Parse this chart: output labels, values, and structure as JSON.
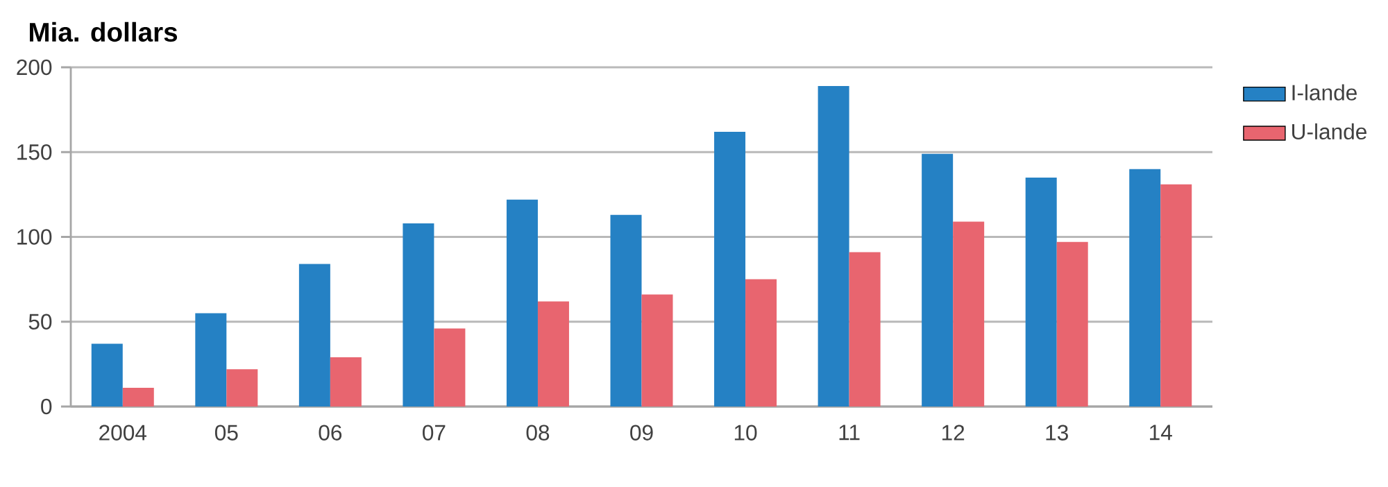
{
  "chart_data": {
    "type": "bar",
    "ylabel": "Mia. dollars",
    "categories": [
      "2004",
      "05",
      "06",
      "07",
      "08",
      "09",
      "10",
      "11",
      "12",
      "13",
      "14"
    ],
    "series": [
      {
        "name": "I-lande",
        "color": "#2581c4",
        "values": [
          37,
          55,
          84,
          108,
          122,
          113,
          162,
          189,
          149,
          135,
          140
        ]
      },
      {
        "name": "U-lande",
        "color": "#e8656f",
        "values": [
          11,
          22,
          29,
          46,
          62,
          66,
          75,
          91,
          109,
          97,
          131
        ]
      }
    ],
    "ylim": [
      0,
      200
    ],
    "yticks": [
      0,
      50,
      100,
      150,
      200
    ],
    "grid": "y",
    "legend": "top right"
  }
}
